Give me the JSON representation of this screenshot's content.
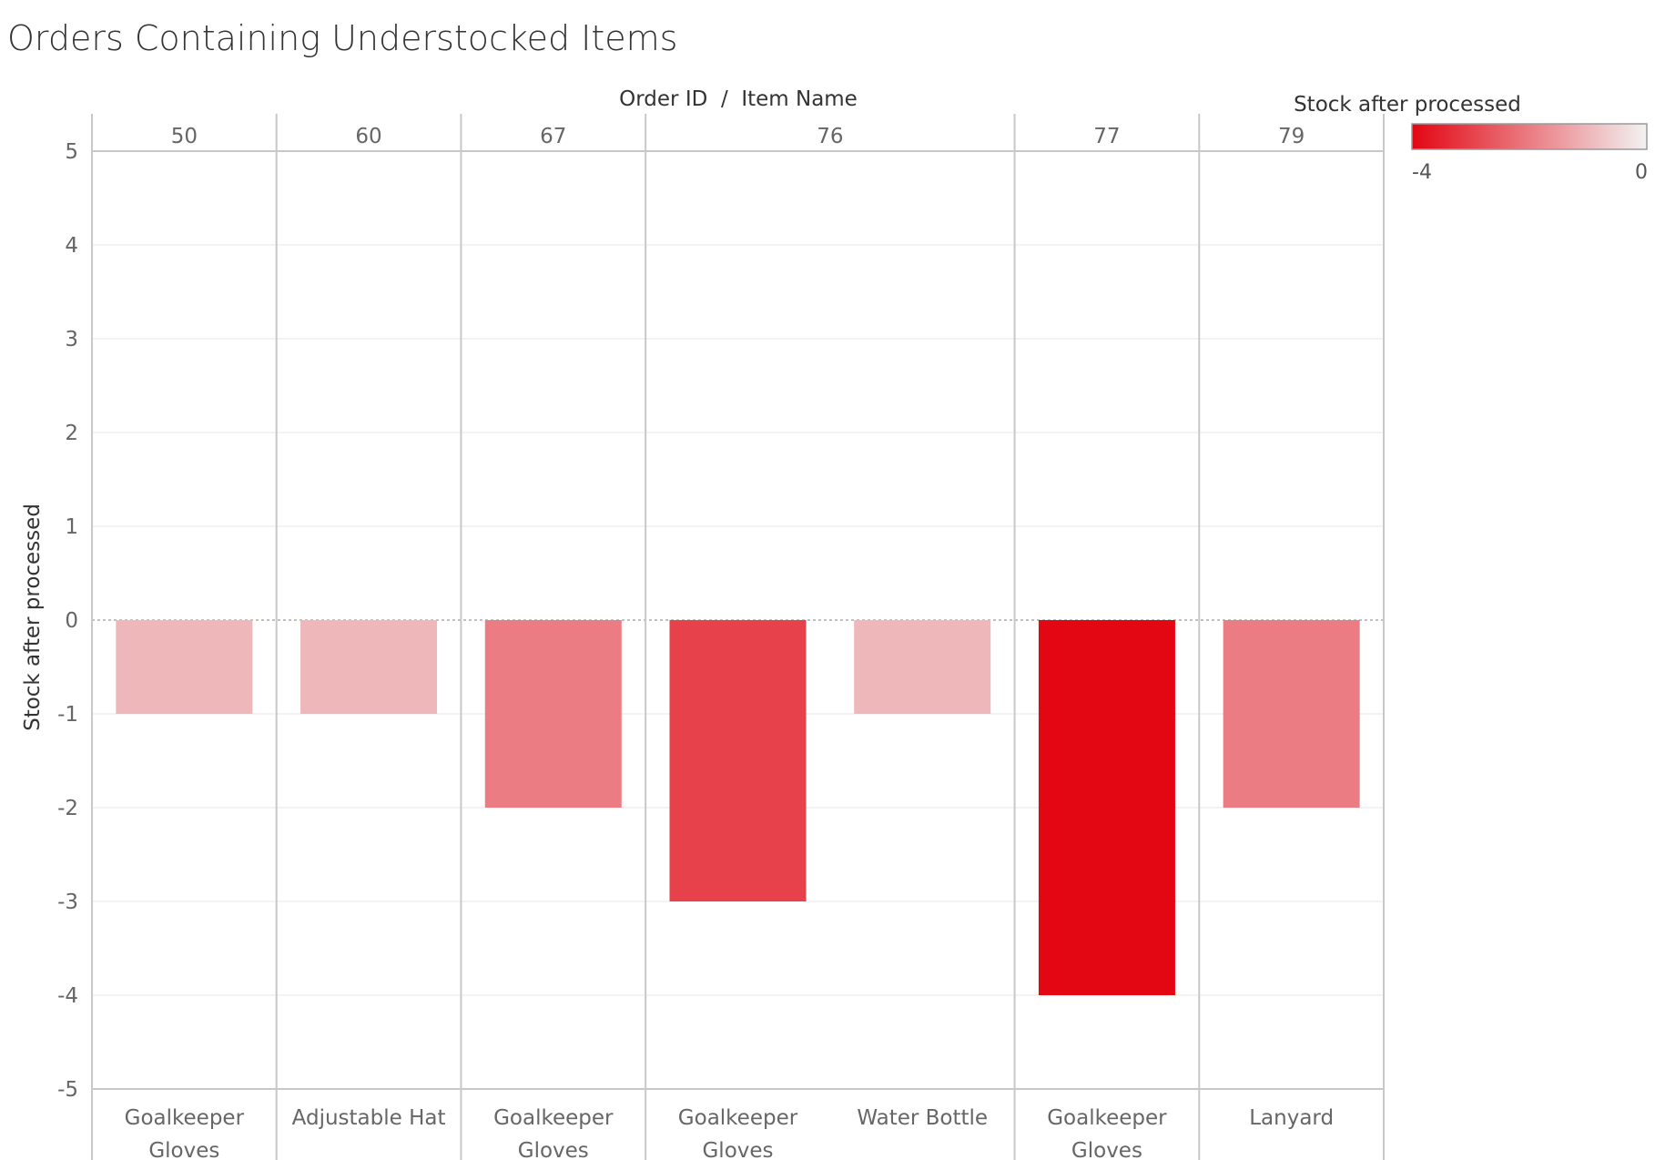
{
  "chart_data": {
    "type": "bar",
    "title": "Orders Containing Understocked Items",
    "column_header": "Order ID  /  Item Name",
    "ylabel": "Stock after processed",
    "ylim": [
      -5,
      5
    ],
    "yticks": [
      5,
      4,
      3,
      2,
      1,
      0,
      -1,
      -2,
      -3,
      -4,
      -5
    ],
    "groups": [
      {
        "order_id": "50",
        "items": [
          {
            "name": [
              "Goalkeeper",
              "Gloves"
            ],
            "value": -1
          }
        ]
      },
      {
        "order_id": "60",
        "items": [
          {
            "name": [
              "Adjustable Hat"
            ],
            "value": -1
          }
        ]
      },
      {
        "order_id": "67",
        "items": [
          {
            "name": [
              "Goalkeeper",
              "Gloves"
            ],
            "value": -2
          }
        ]
      },
      {
        "order_id": "76",
        "items": [
          {
            "name": [
              "Goalkeeper",
              "Gloves"
            ],
            "value": -3
          },
          {
            "name": [
              "Water Bottle"
            ],
            "value": -1
          }
        ]
      },
      {
        "order_id": "77",
        "items": [
          {
            "name": [
              "Goalkeeper",
              "Gloves"
            ],
            "value": -4
          }
        ]
      },
      {
        "order_id": "79",
        "items": [
          {
            "name": [
              "Lanyard"
            ],
            "value": -2
          }
        ]
      }
    ],
    "legend": {
      "title": "Stock after processed",
      "min_label": "-4",
      "max_label": "0",
      "color_min": "#e30613",
      "color_max": "#f2f2f2",
      "placement": "top-right"
    }
  }
}
